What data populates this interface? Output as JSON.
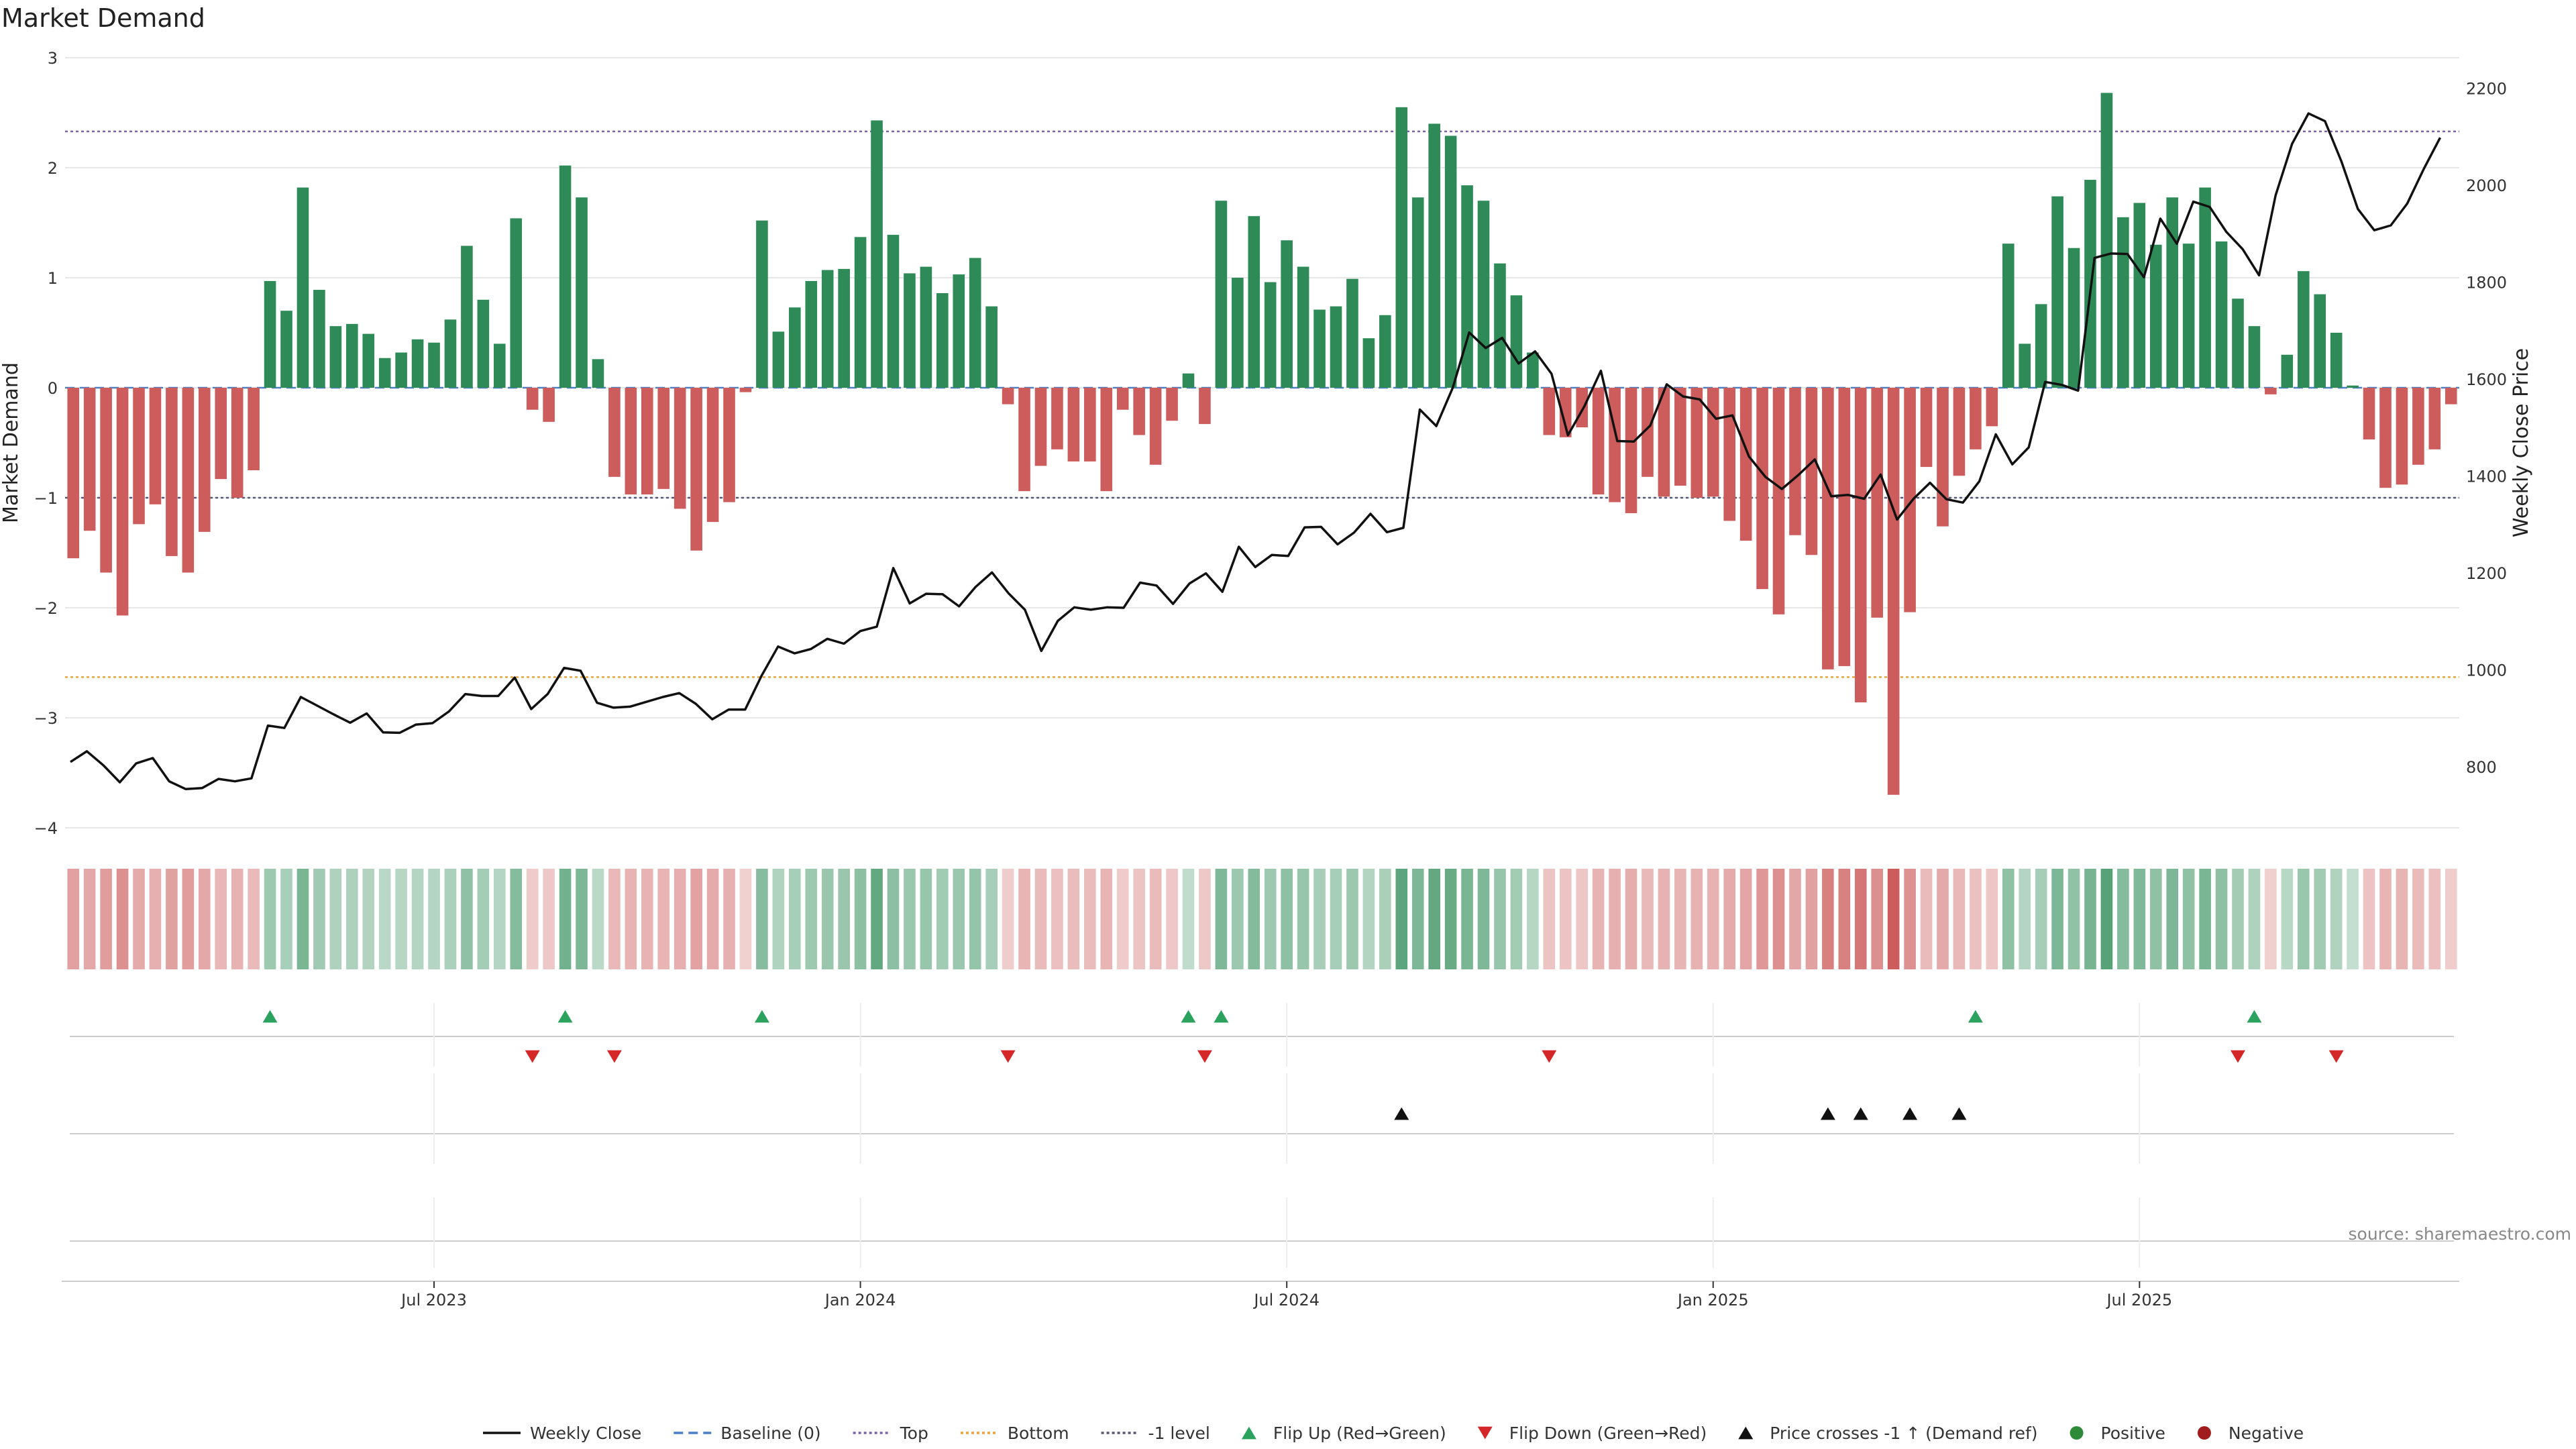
{
  "chart_data": {
    "type": "bar",
    "title": "Market Demand",
    "ylabel": "Market Demand",
    "y2label": "Weekly Close Price",
    "ylim": [
      -4,
      3
    ],
    "y2lim": [
      650,
      2250
    ],
    "yticks": [
      3,
      2,
      1,
      0,
      -1,
      -2,
      -3,
      -4
    ],
    "yticks_display": [
      "3",
      "2",
      "1",
      "0",
      "−1",
      "−2",
      "−3",
      "−4"
    ],
    "y2ticks": [
      2200,
      2000,
      1800,
      1600,
      1400,
      1200,
      1000,
      800
    ],
    "xticks": [
      "Jul 2023",
      "Jan 2024",
      "Jul 2024",
      "Jan 2025",
      "Jul 2025"
    ],
    "xtick_week_index": [
      22,
      48,
      74,
      100,
      126
    ],
    "levels": {
      "top": 2.33,
      "bottom": -2.63,
      "minus_one": -1.0,
      "baseline": 0
    },
    "demand": [
      -1.55,
      -1.3,
      -1.68,
      -2.07,
      -1.24,
      -1.06,
      -1.53,
      -1.68,
      -1.31,
      -0.83,
      -1.0,
      -0.75,
      0.97,
      0.7,
      1.82,
      0.89,
      0.56,
      0.58,
      0.49,
      0.27,
      0.32,
      0.44,
      0.41,
      0.62,
      1.29,
      0.8,
      0.4,
      1.54,
      -0.2,
      -0.31,
      2.02,
      1.73,
      0.26,
      -0.81,
      -0.97,
      -0.97,
      -0.92,
      -1.1,
      -1.48,
      -1.22,
      -1.04,
      -0.04,
      1.52,
      0.51,
      0.73,
      0.97,
      1.07,
      1.08,
      1.37,
      2.43,
      1.39,
      1.04,
      1.1,
      0.86,
      1.03,
      1.18,
      0.74,
      -0.15,
      -0.94,
      -0.71,
      -0.56,
      -0.67,
      -0.67,
      -0.94,
      -0.2,
      -0.43,
      -0.7,
      -0.3,
      0.13,
      -0.33,
      1.7,
      1.0,
      1.56,
      0.96,
      1.34,
      1.1,
      0.71,
      0.74,
      0.99,
      0.45,
      0.66,
      2.55,
      1.73,
      2.4,
      2.29,
      1.84,
      1.7,
      1.13,
      0.84,
      0.32,
      -0.43,
      -0.45,
      -0.36,
      -0.97,
      -1.04,
      -1.14,
      -0.81,
      -0.99,
      -0.89,
      -1.0,
      -0.99,
      -1.21,
      -1.39,
      -1.83,
      -2.06,
      -1.34,
      -1.52,
      -2.56,
      -2.53,
      -2.86,
      -2.09,
      -3.7,
      -2.04,
      -0.72,
      -1.26,
      -0.8,
      -0.56,
      -0.35,
      1.31,
      0.4,
      0.76,
      1.74,
      1.27,
      1.89,
      2.68,
      1.55,
      1.68,
      1.3,
      1.73,
      1.31,
      1.82,
      1.33,
      0.81,
      0.56,
      -0.06,
      0.3,
      1.06,
      0.85,
      0.5,
      0.02,
      -0.47,
      -0.91,
      -0.88,
      -0.7,
      -0.56,
      -0.15
    ],
    "price": [
      810,
      832,
      803,
      768,
      807,
      818,
      770,
      754,
      756,
      775,
      770,
      776,
      885,
      880,
      944,
      926,
      908,
      891,
      910,
      871,
      870,
      887,
      890,
      914,
      950,
      946,
      946,
      984,
      919,
      950,
      1004,
      998,
      932,
      922,
      924,
      934,
      944,
      952,
      930,
      898,
      918,
      918,
      988,
      1048,
      1034,
      1043,
      1064,
      1054,
      1080,
      1089,
      1210,
      1137,
      1157,
      1156,
      1131,
      1171,
      1201,
      1158,
      1124,
      1039,
      1101,
      1129,
      1124,
      1129,
      1128,
      1180,
      1174,
      1136,
      1178,
      1199,
      1161,
      1254,
      1212,
      1237,
      1235,
      1294,
      1295,
      1259,
      1283,
      1322,
      1284,
      1293,
      1537,
      1503,
      1582,
      1696,
      1664,
      1685,
      1632,
      1657,
      1611,
      1484,
      1544,
      1617,
      1472,
      1471,
      1504,
      1589,
      1564,
      1558,
      1518,
      1525,
      1440,
      1398,
      1373,
      1402,
      1434,
      1358,
      1361,
      1353,
      1403,
      1310,
      1353,
      1386,
      1352,
      1345,
      1389,
      1486,
      1424,
      1459,
      1594,
      1588,
      1576,
      1850,
      1859,
      1858,
      1810,
      1931,
      1879,
      1966,
      1955,
      1904,
      1868,
      1814,
      1979,
      2085,
      2148,
      2132,
      2049,
      1951,
      1907,
      1917,
      1962,
      2033,
      2098
    ],
    "flip_up_weeks": [
      12,
      30,
      42,
      68,
      70,
      116,
      133
    ],
    "flip_down_weeks": [
      28,
      33,
      57,
      69,
      90,
      132,
      138
    ],
    "price_cross_weeks": [
      81,
      107,
      109,
      112,
      115
    ],
    "source": "source: sharemaestro.com"
  },
  "legend": [
    {
      "label": "Weekly Close",
      "kind": "line",
      "color": "#111111",
      "dash": ""
    },
    {
      "label": "Baseline (0)",
      "kind": "line",
      "color": "#4a7fc1",
      "dash": "14,8"
    },
    {
      "label": "Top",
      "kind": "line",
      "color": "#7b62a8",
      "dash": "4,4"
    },
    {
      "label": "Bottom",
      "kind": "line",
      "color": "#e8a23a",
      "dash": "4,4"
    },
    {
      "label": "-1 level",
      "kind": "line",
      "color": "#555577",
      "dash": "4,4"
    },
    {
      "label": "Flip Up (Red→Green)",
      "kind": "tri-up",
      "color": "#2ca25f"
    },
    {
      "label": "Flip Down (Green→Red)",
      "kind": "tri-down",
      "color": "#d62728"
    },
    {
      "label": "Price crosses -1 ↑ (Demand ref)",
      "kind": "tri-up",
      "color": "#111111"
    },
    {
      "label": "Positive",
      "kind": "dot",
      "color": "#2e8b3a"
    },
    {
      "label": "Negative",
      "kind": "dot",
      "color": "#a11d1d"
    }
  ],
  "colors": {
    "pos": "#2e8b57",
    "neg": "#cd5c5c",
    "line": "#111111"
  }
}
